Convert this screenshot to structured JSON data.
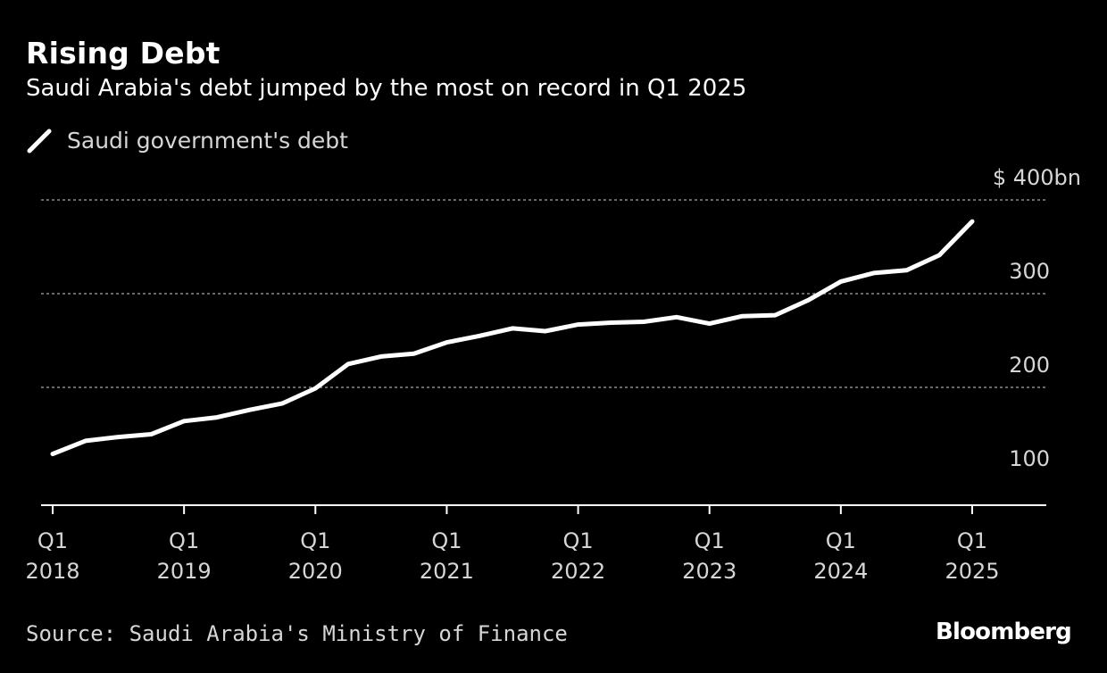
{
  "title": "Rising Debt",
  "subtitle": "Saudi Arabia's debt jumped by the most on record in Q1 2025",
  "source": "Source: Saudi Arabia's Ministry of Finance",
  "logo": "Bloomberg",
  "colors": {
    "background": "#000000",
    "line": "#ffffff",
    "grid": "#8c8c8c",
    "axis": "#ffffff",
    "muted_text": "#d6d6d6"
  },
  "chart_data": {
    "type": "line",
    "title": "Rising Debt",
    "subtitle": "Saudi Arabia's debt jumped by the most on record in Q1 2025",
    "xlabel": "",
    "ylabel": "",
    "y_unit_label": "$ 400bn",
    "ylim": [
      90,
      400
    ],
    "yticks": [
      {
        "value": 100,
        "label": "100"
      },
      {
        "value": 200,
        "label": "200"
      },
      {
        "value": 300,
        "label": "300"
      },
      {
        "value": 400,
        "label": "$ 400bn"
      }
    ],
    "xticks": [
      {
        "x": "2018-Q1",
        "line1": "Q1",
        "line2": "2018"
      },
      {
        "x": "2019-Q1",
        "line1": "Q1",
        "line2": "2019"
      },
      {
        "x": "2020-Q1",
        "line1": "Q1",
        "line2": "2020"
      },
      {
        "x": "2021-Q1",
        "line1": "Q1",
        "line2": "2021"
      },
      {
        "x": "2022-Q1",
        "line1": "Q1",
        "line2": "2022"
      },
      {
        "x": "2023-Q1",
        "line1": "Q1",
        "line2": "2023"
      },
      {
        "x": "2024-Q1",
        "line1": "Q1",
        "line2": "2024"
      },
      {
        "x": "2025-Q1",
        "line1": "Q1",
        "line2": "2025"
      }
    ],
    "grid": true,
    "legend_position": "top-left",
    "series": [
      {
        "name": "Saudi government's debt",
        "color": "#ffffff",
        "x": [
          "2018-Q1",
          "2018-Q2",
          "2018-Q3",
          "2018-Q4",
          "2019-Q1",
          "2019-Q2",
          "2019-Q3",
          "2019-Q4",
          "2020-Q1",
          "2020-Q2",
          "2020-Q3",
          "2020-Q4",
          "2021-Q1",
          "2021-Q2",
          "2021-Q3",
          "2021-Q4",
          "2022-Q1",
          "2022-Q2",
          "2022-Q3",
          "2022-Q4",
          "2023-Q1",
          "2023-Q2",
          "2023-Q3",
          "2023-Q4",
          "2024-Q1",
          "2024-Q2",
          "2024-Q3",
          "2024-Q4",
          "2025-Q1"
        ],
        "values": [
          129,
          143,
          147,
          150,
          164,
          168,
          176,
          183,
          199,
          225,
          233,
          236,
          248,
          255,
          263,
          260,
          267,
          269,
          270,
          275,
          268,
          276,
          277,
          293,
          313,
          322,
          325,
          341,
          377
        ]
      }
    ]
  }
}
